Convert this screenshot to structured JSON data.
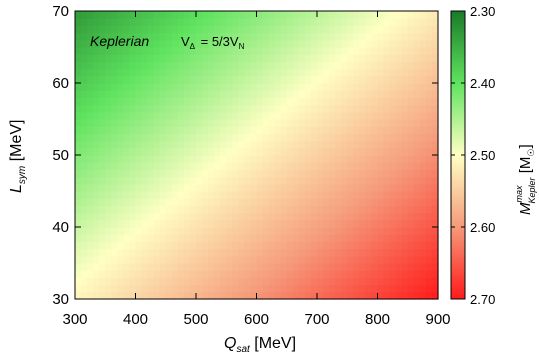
{
  "chart_data": {
    "type": "heatmap",
    "annotation": {
      "model": "Keplerian",
      "v_main": "V",
      "v_sub": "Δ",
      "v_rest": " = 5/3V",
      "v_rest_sub": "N"
    },
    "x_axis": {
      "label_main": "Q",
      "label_sub": "sat",
      "label_unit": " [MeV]",
      "range": [
        300,
        900
      ],
      "ticks": [
        300,
        400,
        500,
        600,
        700,
        800,
        900
      ]
    },
    "y_axis": {
      "label_main": "L",
      "label_sub": "sym",
      "label_unit": " [MeV]",
      "range": [
        30,
        70
      ],
      "ticks": [
        30,
        40,
        50,
        60,
        70
      ]
    },
    "colorbar": {
      "label_main": "M",
      "label_sup": "max",
      "label_sub": "Kepler",
      "label_unit_open": " [M",
      "label_unit_sub": "☉",
      "label_unit_close": "]",
      "range": [
        2.3,
        2.7
      ],
      "reversed": true,
      "ticks": [
        "2.30",
        "2.40",
        "2.50",
        "2.60",
        "2.70"
      ],
      "colors": {
        "low": "#1a7a28",
        "light_low": "#5fe35f",
        "mid": "#ffffc4",
        "light_high": "#f59a7a",
        "high": "#ff1a1a"
      }
    },
    "corner_values": {
      "x300_y70": 2.33,
      "x900_y70": 2.52,
      "x300_y30": 2.51,
      "x900_y30": 2.7
    }
  }
}
